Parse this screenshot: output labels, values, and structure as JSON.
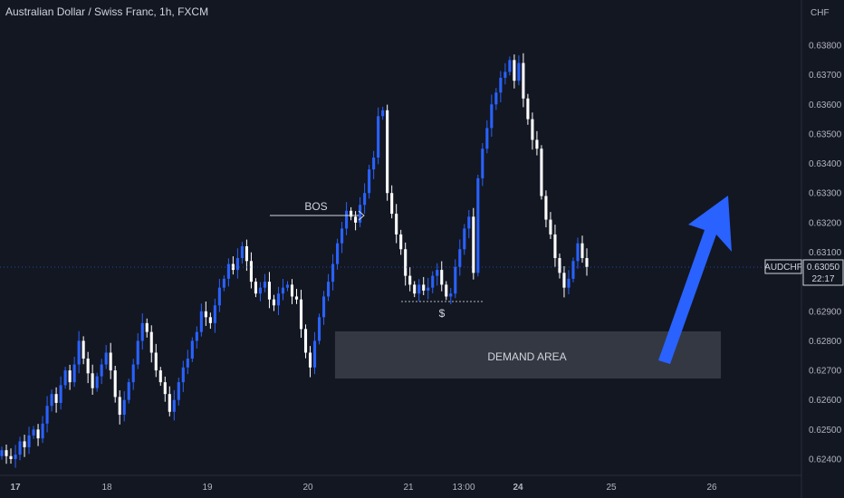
{
  "header": {
    "title": "Australian Dollar / Swiss Franc, 1h, FXCM"
  },
  "price_axis": {
    "currency": "CHF",
    "ticks": [
      "0.63800",
      "0.63700",
      "0.63600",
      "0.63500",
      "0.63400",
      "0.63300",
      "0.63200",
      "0.63100",
      "0.62900",
      "0.62800",
      "0.62700",
      "0.62600",
      "0.62500",
      "0.62400"
    ]
  },
  "time_axis": {
    "ticks": [
      {
        "label": "17",
        "bold": true
      },
      {
        "label": "18",
        "bold": false
      },
      {
        "label": "19",
        "bold": false
      },
      {
        "label": "20",
        "bold": false
      },
      {
        "label": "21",
        "bold": false
      },
      {
        "label": "13:00",
        "bold": false
      },
      {
        "label": "24",
        "bold": true
      },
      {
        "label": "25",
        "bold": false
      },
      {
        "label": "26",
        "bold": false
      }
    ]
  },
  "symbol_tag": {
    "symbol": "AUDCHF",
    "price": "0.63050",
    "countdown": "22:17"
  },
  "annotations": {
    "bos": "BOS",
    "sweep": "$",
    "demand": "DEMAND AREA"
  },
  "colors": {
    "up": "#2962ff",
    "down": "#ffffff",
    "zone": "#363a45",
    "arrow": "#2962ff",
    "background": "#131722"
  },
  "chart_data": {
    "type": "candlestick",
    "title": "Australian Dollar / Swiss Franc, 1h, FXCM",
    "ylabel": "CHF",
    "ylim": [
      0.62375,
      0.63885
    ],
    "x": [
      "17",
      "18",
      "19",
      "20",
      "21",
      "13:00",
      "24",
      "25",
      "26"
    ],
    "candles_close": [
      0.6243,
      0.6241,
      0.624,
      0.62415,
      0.6246,
      0.6244,
      0.6248,
      0.625,
      0.6247,
      0.6252,
      0.6258,
      0.6262,
      0.6259,
      0.6265,
      0.627,
      0.6266,
      0.6272,
      0.628,
      0.6274,
      0.6269,
      0.6264,
      0.6268,
      0.6272,
      0.6276,
      0.627,
      0.6261,
      0.6255,
      0.626,
      0.6266,
      0.6272,
      0.628,
      0.6286,
      0.6283,
      0.6276,
      0.627,
      0.6266,
      0.6262,
      0.6256,
      0.626,
      0.6266,
      0.6271,
      0.6274,
      0.628,
      0.6283,
      0.629,
      0.6288,
      0.6286,
      0.6292,
      0.6298,
      0.6301,
      0.6306,
      0.6304,
      0.6308,
      0.6312,
      0.6307,
      0.63,
      0.6296,
      0.6298,
      0.63,
      0.6294,
      0.6292,
      0.6296,
      0.6298,
      0.6299,
      0.6295,
      0.6294,
      0.6284,
      0.6276,
      0.6271,
      0.628,
      0.6288,
      0.6295,
      0.63,
      0.6306,
      0.6313,
      0.6318,
      0.6324,
      0.6322,
      0.632,
      0.6326,
      0.633,
      0.6338,
      0.6342,
      0.6356,
      0.6358,
      0.633,
      0.6323,
      0.6316,
      0.6311,
      0.6302,
      0.6299,
      0.6296,
      0.6299,
      0.6297,
      0.6298,
      0.6302,
      0.6304,
      0.6299,
      0.6295,
      0.6296,
      0.6305,
      0.6311,
      0.6318,
      0.6322,
      0.6303,
      0.6335,
      0.6345,
      0.6352,
      0.636,
      0.6364,
      0.6369,
      0.6371,
      0.6375,
      0.6368,
      0.6374,
      0.6362,
      0.6355,
      0.6348,
      0.6345,
      0.6329,
      0.6321,
      0.6316,
      0.6308,
      0.6303,
      0.6298,
      0.6301,
      0.6307,
      0.6313,
      0.6308,
      0.6305
    ],
    "demand_zone": [
      0.6267,
      0.6283
    ],
    "bos_level": 0.6322,
    "sweep_level": 0.6293,
    "last_price": 0.6305
  }
}
